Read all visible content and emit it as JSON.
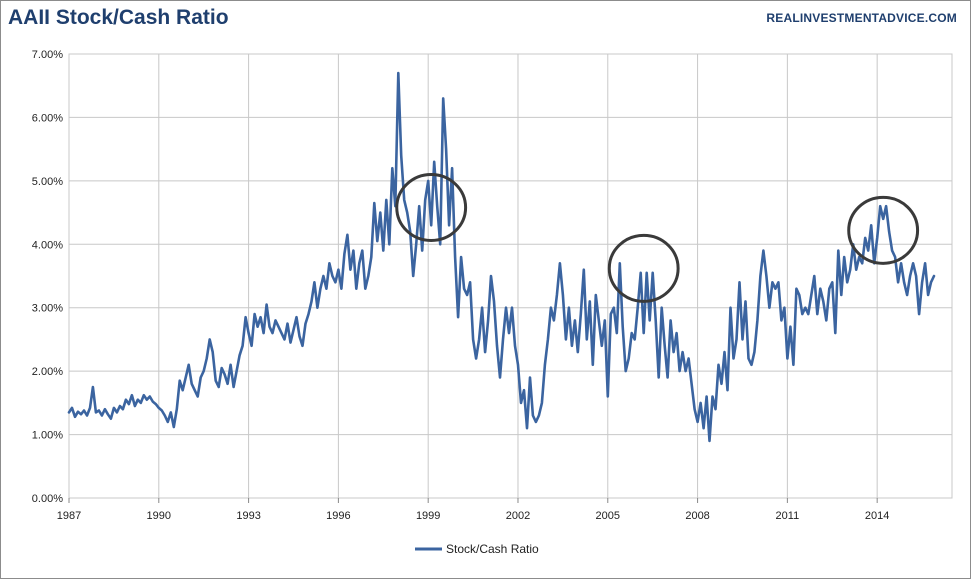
{
  "header": {
    "title": "AAII Stock/Cash Ratio",
    "source": "REALINVESTMENTADVICE.COM"
  },
  "colors": {
    "series": "#3b64a0",
    "circle": "#3a3a3a",
    "grid": "#c8c8c8",
    "title": "#1f3f6e"
  },
  "chart_data": {
    "type": "line",
    "title": "AAII Stock/Cash Ratio",
    "xlabel": "",
    "ylabel": "",
    "xlim": [
      1987,
      2016.5
    ],
    "ylim": [
      0,
      7
    ],
    "x_ticks": [
      "1987",
      "1990",
      "1993",
      "1996",
      "1999",
      "2002",
      "2005",
      "2008",
      "2011",
      "2014"
    ],
    "y_ticks": [
      "0.00%",
      "1.00%",
      "2.00%",
      "3.00%",
      "4.00%",
      "5.00%",
      "6.00%",
      "7.00%"
    ],
    "grid": true,
    "legend_position": "bottom",
    "series": [
      {
        "name": "Stock/Cash Ratio",
        "points": [
          [
            1987.0,
            1.35
          ],
          [
            1987.1,
            1.42
          ],
          [
            1987.2,
            1.28
          ],
          [
            1987.3,
            1.36
          ],
          [
            1987.4,
            1.32
          ],
          [
            1987.5,
            1.38
          ],
          [
            1987.6,
            1.3
          ],
          [
            1987.7,
            1.42
          ],
          [
            1987.8,
            1.75
          ],
          [
            1987.9,
            1.35
          ],
          [
            1988.0,
            1.38
          ],
          [
            1988.1,
            1.3
          ],
          [
            1988.2,
            1.4
          ],
          [
            1988.3,
            1.32
          ],
          [
            1988.4,
            1.25
          ],
          [
            1988.5,
            1.42
          ],
          [
            1988.6,
            1.35
          ],
          [
            1988.7,
            1.45
          ],
          [
            1988.8,
            1.4
          ],
          [
            1988.9,
            1.55
          ],
          [
            1989.0,
            1.48
          ],
          [
            1989.1,
            1.62
          ],
          [
            1989.2,
            1.45
          ],
          [
            1989.3,
            1.55
          ],
          [
            1989.4,
            1.5
          ],
          [
            1989.5,
            1.62
          ],
          [
            1989.6,
            1.55
          ],
          [
            1989.7,
            1.6
          ],
          [
            1989.8,
            1.52
          ],
          [
            1989.9,
            1.48
          ],
          [
            1990.0,
            1.42
          ],
          [
            1990.1,
            1.38
          ],
          [
            1990.2,
            1.3
          ],
          [
            1990.3,
            1.2
          ],
          [
            1990.4,
            1.35
          ],
          [
            1990.5,
            1.12
          ],
          [
            1990.6,
            1.4
          ],
          [
            1990.7,
            1.85
          ],
          [
            1990.8,
            1.7
          ],
          [
            1990.9,
            1.9
          ],
          [
            1991.0,
            2.1
          ],
          [
            1991.1,
            1.8
          ],
          [
            1991.2,
            1.7
          ],
          [
            1991.3,
            1.6
          ],
          [
            1991.4,
            1.9
          ],
          [
            1991.5,
            2.0
          ],
          [
            1991.6,
            2.2
          ],
          [
            1991.7,
            2.5
          ],
          [
            1991.8,
            2.3
          ],
          [
            1991.9,
            1.85
          ],
          [
            1992.0,
            1.75
          ],
          [
            1992.1,
            2.05
          ],
          [
            1992.2,
            1.95
          ],
          [
            1992.3,
            1.8
          ],
          [
            1992.4,
            2.1
          ],
          [
            1992.5,
            1.75
          ],
          [
            1992.6,
            2.0
          ],
          [
            1992.7,
            2.25
          ],
          [
            1992.8,
            2.4
          ],
          [
            1992.9,
            2.85
          ],
          [
            1993.0,
            2.6
          ],
          [
            1993.1,
            2.4
          ],
          [
            1993.2,
            2.9
          ],
          [
            1993.3,
            2.7
          ],
          [
            1993.4,
            2.85
          ],
          [
            1993.5,
            2.6
          ],
          [
            1993.6,
            3.05
          ],
          [
            1993.7,
            2.7
          ],
          [
            1993.8,
            2.6
          ],
          [
            1993.9,
            2.8
          ],
          [
            1994.0,
            2.7
          ],
          [
            1994.1,
            2.6
          ],
          [
            1994.2,
            2.5
          ],
          [
            1994.3,
            2.75
          ],
          [
            1994.4,
            2.45
          ],
          [
            1994.5,
            2.65
          ],
          [
            1994.6,
            2.85
          ],
          [
            1994.7,
            2.55
          ],
          [
            1994.8,
            2.4
          ],
          [
            1994.9,
            2.75
          ],
          [
            1995.0,
            2.9
          ],
          [
            1995.1,
            3.1
          ],
          [
            1995.2,
            3.4
          ],
          [
            1995.3,
            3.0
          ],
          [
            1995.4,
            3.3
          ],
          [
            1995.5,
            3.5
          ],
          [
            1995.6,
            3.3
          ],
          [
            1995.7,
            3.7
          ],
          [
            1995.8,
            3.5
          ],
          [
            1995.9,
            3.4
          ],
          [
            1996.0,
            3.6
          ],
          [
            1996.1,
            3.3
          ],
          [
            1996.2,
            3.85
          ],
          [
            1996.3,
            4.15
          ],
          [
            1996.4,
            3.6
          ],
          [
            1996.5,
            3.9
          ],
          [
            1996.6,
            3.3
          ],
          [
            1996.7,
            3.7
          ],
          [
            1996.8,
            3.9
          ],
          [
            1996.9,
            3.3
          ],
          [
            1997.0,
            3.5
          ],
          [
            1997.1,
            3.8
          ],
          [
            1997.2,
            4.65
          ],
          [
            1997.3,
            4.05
          ],
          [
            1997.4,
            4.5
          ],
          [
            1997.5,
            3.9
          ],
          [
            1997.6,
            4.7
          ],
          [
            1997.7,
            4.0
          ],
          [
            1997.8,
            5.2
          ],
          [
            1997.9,
            4.6
          ],
          [
            1998.0,
            6.7
          ],
          [
            1998.1,
            5.4
          ],
          [
            1998.2,
            4.7
          ],
          [
            1998.3,
            4.5
          ],
          [
            1998.4,
            4.2
          ],
          [
            1998.5,
            3.5
          ],
          [
            1998.6,
            4.0
          ],
          [
            1998.7,
            4.6
          ],
          [
            1998.8,
            3.9
          ],
          [
            1998.9,
            4.7
          ],
          [
            1999.0,
            5.0
          ],
          [
            1999.1,
            4.3
          ],
          [
            1999.2,
            5.3
          ],
          [
            1999.3,
            4.6
          ],
          [
            1999.4,
            4.0
          ],
          [
            1999.5,
            6.3
          ],
          [
            1999.6,
            5.5
          ],
          [
            1999.7,
            4.3
          ],
          [
            1999.8,
            5.2
          ],
          [
            1999.9,
            3.8
          ],
          [
            2000.0,
            2.85
          ],
          [
            2000.1,
            3.8
          ],
          [
            2000.2,
            3.3
          ],
          [
            2000.3,
            3.2
          ],
          [
            2000.4,
            3.4
          ],
          [
            2000.5,
            2.5
          ],
          [
            2000.6,
            2.2
          ],
          [
            2000.7,
            2.5
          ],
          [
            2000.8,
            3.0
          ],
          [
            2000.9,
            2.3
          ],
          [
            2001.0,
            2.8
          ],
          [
            2001.1,
            3.5
          ],
          [
            2001.2,
            3.1
          ],
          [
            2001.3,
            2.4
          ],
          [
            2001.4,
            1.9
          ],
          [
            2001.5,
            2.5
          ],
          [
            2001.6,
            3.0
          ],
          [
            2001.7,
            2.6
          ],
          [
            2001.8,
            3.0
          ],
          [
            2001.9,
            2.4
          ],
          [
            2002.0,
            2.1
          ],
          [
            2002.1,
            1.5
          ],
          [
            2002.2,
            1.7
          ],
          [
            2002.3,
            1.1
          ],
          [
            2002.4,
            1.9
          ],
          [
            2002.5,
            1.3
          ],
          [
            2002.6,
            1.2
          ],
          [
            2002.7,
            1.3
          ],
          [
            2002.8,
            1.5
          ],
          [
            2002.9,
            2.1
          ],
          [
            2003.0,
            2.5
          ],
          [
            2003.1,
            3.0
          ],
          [
            2003.2,
            2.8
          ],
          [
            2003.3,
            3.2
          ],
          [
            2003.4,
            3.7
          ],
          [
            2003.5,
            3.2
          ],
          [
            2003.6,
            2.5
          ],
          [
            2003.7,
            3.0
          ],
          [
            2003.8,
            2.4
          ],
          [
            2003.9,
            2.8
          ],
          [
            2004.0,
            2.3
          ],
          [
            2004.1,
            2.9
          ],
          [
            2004.2,
            3.6
          ],
          [
            2004.3,
            2.5
          ],
          [
            2004.4,
            3.1
          ],
          [
            2004.5,
            2.1
          ],
          [
            2004.6,
            3.2
          ],
          [
            2004.7,
            2.8
          ],
          [
            2004.8,
            2.4
          ],
          [
            2004.9,
            2.8
          ],
          [
            2005.0,
            1.6
          ],
          [
            2005.1,
            2.9
          ],
          [
            2005.2,
            3.0
          ],
          [
            2005.3,
            2.6
          ],
          [
            2005.4,
            3.7
          ],
          [
            2005.5,
            2.7
          ],
          [
            2005.6,
            2.0
          ],
          [
            2005.7,
            2.2
          ],
          [
            2005.8,
            2.6
          ],
          [
            2005.9,
            2.5
          ],
          [
            2006.0,
            3.0
          ],
          [
            2006.1,
            3.55
          ],
          [
            2006.2,
            2.6
          ],
          [
            2006.3,
            3.55
          ],
          [
            2006.4,
            2.8
          ],
          [
            2006.5,
            3.55
          ],
          [
            2006.6,
            2.8
          ],
          [
            2006.7,
            1.9
          ],
          [
            2006.8,
            3.0
          ],
          [
            2006.9,
            2.4
          ],
          [
            2007.0,
            1.9
          ],
          [
            2007.1,
            2.8
          ],
          [
            2007.2,
            2.3
          ],
          [
            2007.3,
            2.6
          ],
          [
            2007.4,
            2.0
          ],
          [
            2007.5,
            2.3
          ],
          [
            2007.6,
            2.0
          ],
          [
            2007.7,
            2.2
          ],
          [
            2007.8,
            1.8
          ],
          [
            2007.9,
            1.4
          ],
          [
            2008.0,
            1.2
          ],
          [
            2008.1,
            1.5
          ],
          [
            2008.2,
            1.1
          ],
          [
            2008.3,
            1.6
          ],
          [
            2008.4,
            0.9
          ],
          [
            2008.5,
            1.6
          ],
          [
            2008.6,
            1.4
          ],
          [
            2008.7,
            2.1
          ],
          [
            2008.8,
            1.8
          ],
          [
            2008.9,
            2.3
          ],
          [
            2009.0,
            1.7
          ],
          [
            2009.1,
            3.0
          ],
          [
            2009.2,
            2.2
          ],
          [
            2009.3,
            2.5
          ],
          [
            2009.4,
            3.4
          ],
          [
            2009.5,
            2.5
          ],
          [
            2009.6,
            3.1
          ],
          [
            2009.7,
            2.2
          ],
          [
            2009.8,
            2.1
          ],
          [
            2009.9,
            2.3
          ],
          [
            2010.0,
            2.8
          ],
          [
            2010.1,
            3.5
          ],
          [
            2010.2,
            3.9
          ],
          [
            2010.3,
            3.5
          ],
          [
            2010.4,
            3.0
          ],
          [
            2010.5,
            3.4
          ],
          [
            2010.6,
            3.3
          ],
          [
            2010.7,
            3.4
          ],
          [
            2010.8,
            2.8
          ],
          [
            2010.9,
            3.0
          ],
          [
            2011.0,
            2.2
          ],
          [
            2011.1,
            2.7
          ],
          [
            2011.2,
            2.1
          ],
          [
            2011.3,
            3.3
          ],
          [
            2011.4,
            3.2
          ],
          [
            2011.5,
            2.9
          ],
          [
            2011.6,
            3.0
          ],
          [
            2011.7,
            2.9
          ],
          [
            2011.8,
            3.2
          ],
          [
            2011.9,
            3.5
          ],
          [
            2012.0,
            2.9
          ],
          [
            2012.1,
            3.3
          ],
          [
            2012.2,
            3.1
          ],
          [
            2012.3,
            2.8
          ],
          [
            2012.4,
            3.3
          ],
          [
            2012.5,
            3.4
          ],
          [
            2012.6,
            2.6
          ],
          [
            2012.7,
            3.9
          ],
          [
            2012.8,
            3.2
          ],
          [
            2012.9,
            3.8
          ],
          [
            2013.0,
            3.4
          ],
          [
            2013.1,
            3.6
          ],
          [
            2013.2,
            4.0
          ],
          [
            2013.3,
            3.6
          ],
          [
            2013.4,
            3.8
          ],
          [
            2013.5,
            3.7
          ],
          [
            2013.6,
            4.1
          ],
          [
            2013.7,
            3.9
          ],
          [
            2013.8,
            4.3
          ],
          [
            2013.9,
            3.7
          ],
          [
            2014.0,
            4.1
          ],
          [
            2014.1,
            4.6
          ],
          [
            2014.2,
            4.4
          ],
          [
            2014.3,
            4.6
          ],
          [
            2014.4,
            4.2
          ],
          [
            2014.5,
            3.9
          ],
          [
            2014.6,
            3.8
          ],
          [
            2014.7,
            3.4
          ],
          [
            2014.8,
            3.7
          ],
          [
            2014.9,
            3.4
          ],
          [
            2015.0,
            3.2
          ],
          [
            2015.1,
            3.5
          ],
          [
            2015.2,
            3.7
          ],
          [
            2015.3,
            3.5
          ],
          [
            2015.4,
            2.9
          ],
          [
            2015.5,
            3.4
          ],
          [
            2015.6,
            3.7
          ],
          [
            2015.7,
            3.2
          ],
          [
            2015.8,
            3.4
          ],
          [
            2015.9,
            3.5
          ]
        ]
      }
    ],
    "annotations": [
      {
        "type": "circle",
        "x": 1999.1,
        "y": 4.58,
        "rx": 1.15,
        "ry": 0.52
      },
      {
        "type": "circle",
        "x": 2006.2,
        "y": 3.62,
        "rx": 1.15,
        "ry": 0.52
      },
      {
        "type": "circle",
        "x": 2014.2,
        "y": 4.22,
        "rx": 1.15,
        "ry": 0.52
      }
    ]
  }
}
